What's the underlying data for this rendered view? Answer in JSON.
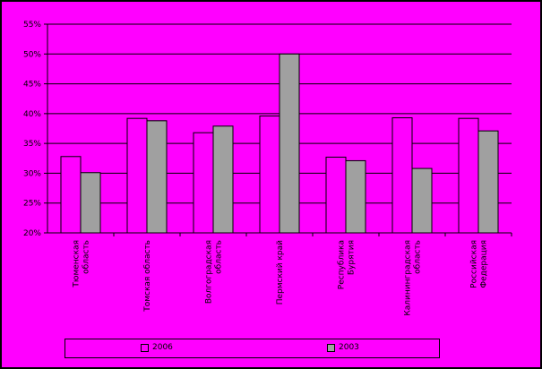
{
  "chart_data": {
    "type": "bar",
    "categories": [
      [
        "Тюменская",
        "область"
      ],
      [
        "Томская область"
      ],
      [
        "Волгоградская",
        "область"
      ],
      [
        "Пермский край"
      ],
      [
        "Республика",
        "Бурятия"
      ],
      [
        "Калининградская",
        "область"
      ],
      [
        "Российская",
        "Федерация"
      ]
    ],
    "series": [
      {
        "name": "2006",
        "color": "#ff00ff",
        "values": [
          32.8,
          39.2,
          36.8,
          39.6,
          32.7,
          39.3,
          39.2
        ]
      },
      {
        "name": "2003",
        "color": "#a0a0a0",
        "values": [
          30.1,
          38.8,
          37.9,
          50.0,
          32.1,
          30.8,
          37.1
        ]
      }
    ],
    "ylim": [
      20,
      55
    ],
    "yticks": [
      "20%",
      "25%",
      "30%",
      "35%",
      "40%",
      "45%",
      "50%",
      "55%"
    ],
    "ytick_values": [
      20,
      25,
      30,
      35,
      40,
      45,
      50,
      55
    ],
    "grid": true,
    "legend_position": "bottom"
  }
}
